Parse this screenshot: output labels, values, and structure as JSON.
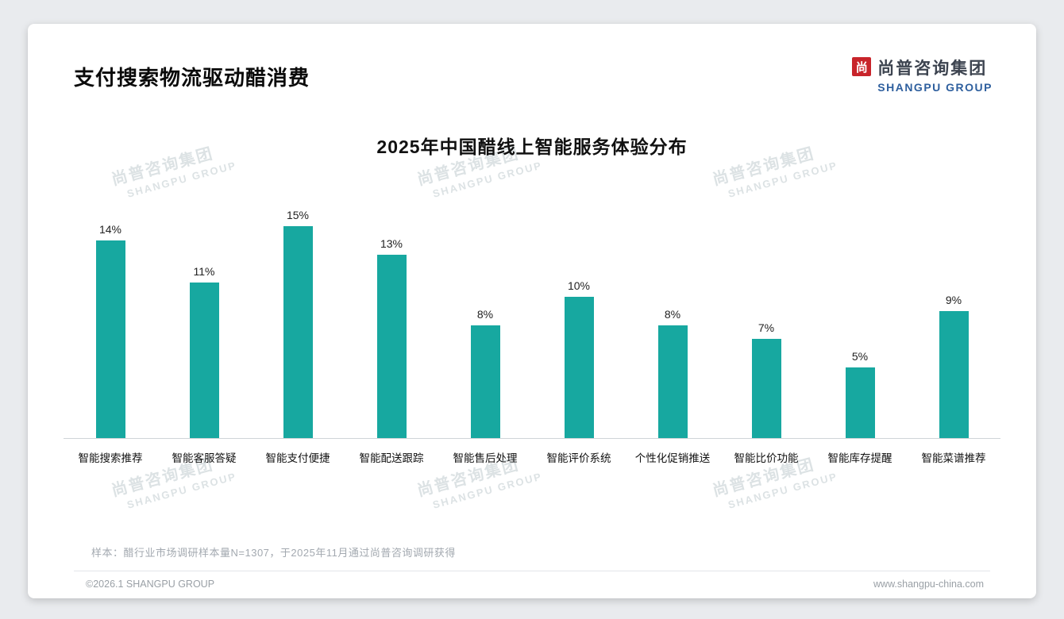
{
  "slide": {
    "title": "支付搜索物流驱动醋消费",
    "logo": {
      "mark": "尚",
      "cn": "尚普咨询集团",
      "en": "SHANGPU GROUP"
    },
    "watermark": {
      "cn": "尚普咨询集团",
      "en": "SHANGPU GROUP"
    },
    "note": "样本：醋行业市场调研样本量N=1307，于2025年11月通过尚普咨询调研获得",
    "footer": {
      "copyright": "©2026.1 SHANGPU GROUP",
      "website": "www.shangpu-china.com"
    }
  },
  "chart_data": {
    "type": "bar",
    "title": "2025年中国醋线上智能服务体验分布",
    "categories": [
      "智能搜索推荐",
      "智能客服答疑",
      "智能支付便捷",
      "智能配送跟踪",
      "智能售后处理",
      "智能评价系统",
      "个性化促销推送",
      "智能比价功能",
      "智能库存提醒",
      "智能菜谱推荐"
    ],
    "values": [
      14,
      11,
      15,
      13,
      8,
      10,
      8,
      7,
      5,
      9
    ],
    "unit": "%",
    "bar_color": "#17a8a0",
    "xlabel": "",
    "ylabel": "",
    "ylim": [
      0,
      16.5
    ],
    "grid": false,
    "legend": false
  }
}
